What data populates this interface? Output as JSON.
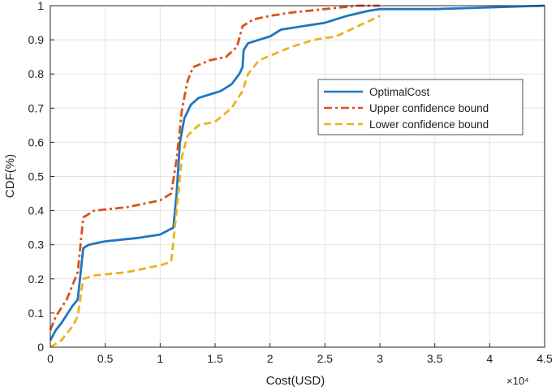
{
  "colors": {
    "optimal": "#1f77c0",
    "upper": "#d95319",
    "lower": "#edb120",
    "grid": "#e3e3e3",
    "axis": "#262626"
  },
  "chart_data": {
    "type": "line",
    "title": "",
    "xlabel": "Cost(USD)",
    "ylabel": "CDF(%)",
    "x_multiplier_label": "×10⁴",
    "xlim": [
      0,
      4.5
    ],
    "ylim": [
      0,
      1
    ],
    "xticks": [
      0,
      0.5,
      1,
      1.5,
      2,
      2.5,
      3,
      3.5,
      4,
      4.5
    ],
    "xtick_labels": [
      "0",
      "0.5",
      "1",
      "1.5",
      "2",
      "2.5",
      "3",
      "3.5",
      "4",
      "4.5"
    ],
    "yticks": [
      0,
      0.1,
      0.2,
      0.3,
      0.4,
      0.5,
      0.6,
      0.7,
      0.8,
      0.9,
      1
    ],
    "ytick_labels": [
      "0",
      "0.1",
      "0.2",
      "0.3",
      "0.4",
      "0.5",
      "0.6",
      "0.7",
      "0.8",
      "0.9",
      "1"
    ],
    "grid": true,
    "legend_position": "right",
    "series": [
      {
        "name": "OptimalCost",
        "style": "solid",
        "points": [
          [
            0,
            0.02
          ],
          [
            0.05,
            0.05
          ],
          [
            0.1,
            0.07
          ],
          [
            0.2,
            0.12
          ],
          [
            0.25,
            0.14
          ],
          [
            0.3,
            0.29
          ],
          [
            0.35,
            0.3
          ],
          [
            0.5,
            0.31
          ],
          [
            0.8,
            0.32
          ],
          [
            1.0,
            0.33
          ],
          [
            1.12,
            0.35
          ],
          [
            1.15,
            0.45
          ],
          [
            1.18,
            0.6
          ],
          [
            1.22,
            0.67
          ],
          [
            1.28,
            0.71
          ],
          [
            1.35,
            0.73
          ],
          [
            1.45,
            0.74
          ],
          [
            1.55,
            0.75
          ],
          [
            1.65,
            0.77
          ],
          [
            1.72,
            0.8
          ],
          [
            1.75,
            0.82
          ],
          [
            1.76,
            0.87
          ],
          [
            1.8,
            0.89
          ],
          [
            1.9,
            0.9
          ],
          [
            2.0,
            0.91
          ],
          [
            2.1,
            0.93
          ],
          [
            2.3,
            0.94
          ],
          [
            2.5,
            0.95
          ],
          [
            2.7,
            0.97
          ],
          [
            2.9,
            0.985
          ],
          [
            3.0,
            0.99
          ],
          [
            3.5,
            0.99
          ],
          [
            4.0,
            0.995
          ],
          [
            4.5,
            1.0
          ]
        ]
      },
      {
        "name": "Upper confidence bound",
        "style": "dashdot",
        "points": [
          [
            0,
            0.05
          ],
          [
            0.05,
            0.09
          ],
          [
            0.15,
            0.14
          ],
          [
            0.25,
            0.22
          ],
          [
            0.3,
            0.38
          ],
          [
            0.4,
            0.4
          ],
          [
            0.7,
            0.41
          ],
          [
            1.0,
            0.43
          ],
          [
            1.1,
            0.45
          ],
          [
            1.15,
            0.55
          ],
          [
            1.2,
            0.7
          ],
          [
            1.25,
            0.78
          ],
          [
            1.3,
            0.82
          ],
          [
            1.45,
            0.84
          ],
          [
            1.6,
            0.85
          ],
          [
            1.7,
            0.88
          ],
          [
            1.75,
            0.94
          ],
          [
            1.85,
            0.96
          ],
          [
            2.0,
            0.97
          ],
          [
            2.2,
            0.98
          ],
          [
            2.5,
            0.99
          ],
          [
            2.8,
            1.0
          ],
          [
            3.0,
            1.0
          ]
        ]
      },
      {
        "name": "Lower confidence bound",
        "style": "dashed",
        "points": [
          [
            0,
            0.0
          ],
          [
            0.1,
            0.02
          ],
          [
            0.2,
            0.06
          ],
          [
            0.25,
            0.09
          ],
          [
            0.3,
            0.2
          ],
          [
            0.4,
            0.21
          ],
          [
            0.7,
            0.22
          ],
          [
            1.0,
            0.24
          ],
          [
            1.1,
            0.25
          ],
          [
            1.15,
            0.4
          ],
          [
            1.2,
            0.56
          ],
          [
            1.25,
            0.62
          ],
          [
            1.35,
            0.65
          ],
          [
            1.5,
            0.66
          ],
          [
            1.65,
            0.7
          ],
          [
            1.75,
            0.75
          ],
          [
            1.8,
            0.8
          ],
          [
            1.9,
            0.84
          ],
          [
            2.05,
            0.86
          ],
          [
            2.2,
            0.88
          ],
          [
            2.4,
            0.9
          ],
          [
            2.6,
            0.91
          ],
          [
            2.8,
            0.94
          ],
          [
            3.0,
            0.97
          ]
        ]
      }
    ]
  }
}
